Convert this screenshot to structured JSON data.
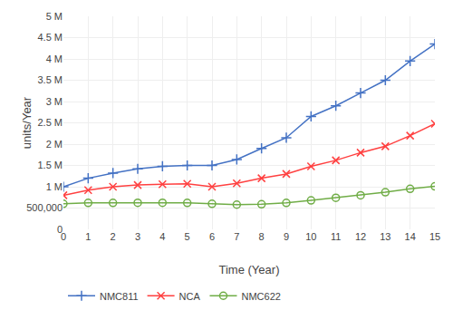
{
  "chart_data": {
    "type": "line",
    "xlabel": "Time (Year)",
    "ylabel": "units/Year",
    "x": [
      0,
      1,
      2,
      3,
      4,
      5,
      6,
      7,
      8,
      9,
      10,
      11,
      12,
      13,
      14,
      15
    ],
    "series": [
      {
        "name": "NMC811",
        "color": "#4472C4",
        "marker": "plus",
        "values": [
          1000000,
          1200000,
          1320000,
          1420000,
          1480000,
          1500000,
          1500000,
          1640000,
          1900000,
          2150000,
          2650000,
          2900000,
          3200000,
          3500000,
          3950000,
          4350000
        ]
      },
      {
        "name": "NCA",
        "color": "#FF4040",
        "marker": "x",
        "values": [
          800000,
          920000,
          1000000,
          1040000,
          1060000,
          1070000,
          1000000,
          1080000,
          1200000,
          1300000,
          1480000,
          1620000,
          1800000,
          1950000,
          2200000,
          2480000
        ]
      },
      {
        "name": "NMC622",
        "color": "#70AD47",
        "marker": "circle",
        "values": [
          600000,
          620000,
          620000,
          625000,
          625000,
          620000,
          600000,
          580000,
          590000,
          620000,
          680000,
          740000,
          800000,
          870000,
          950000,
          1010000
        ]
      }
    ],
    "xlim": [
      0,
      15
    ],
    "xticks": [
      0,
      1,
      2,
      3,
      4,
      5,
      6,
      7,
      8,
      9,
      10,
      11,
      12,
      13,
      14,
      15
    ],
    "ylim": [
      0,
      5000000
    ],
    "yticks": [
      0,
      {
        "value": 500000,
        "label": "500,000"
      },
      {
        "value": 1000000,
        "label": "1 M"
      },
      {
        "value": 1500000,
        "label": "1.5 M"
      },
      {
        "value": 2000000,
        "label": "2 M"
      },
      {
        "value": 2500000,
        "label": "2.5 M"
      },
      {
        "value": 3000000,
        "label": "3 M"
      },
      {
        "value": 3500000,
        "label": "3.5 M"
      },
      {
        "value": 4000000,
        "label": "4 M"
      },
      {
        "value": 4500000,
        "label": "4.5 M"
      },
      {
        "value": 5000000,
        "label": "5 M"
      }
    ],
    "grid": true,
    "legend": "bottom"
  }
}
